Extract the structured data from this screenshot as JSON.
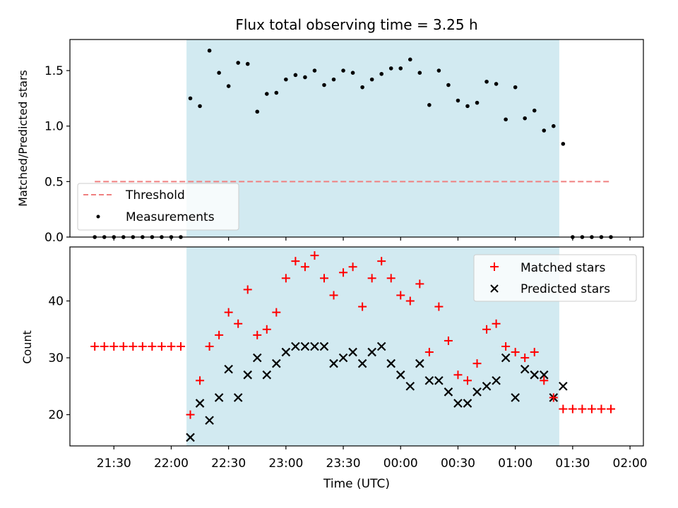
{
  "title": "Flux total observing time = 3.25 h",
  "xlabel": "Time (UTC)",
  "x_tick_labels": [
    "21:30",
    "22:00",
    "22:30",
    "23:00",
    "23:30",
    "00:00",
    "00:30",
    "01:00",
    "01:30",
    "02:00"
  ],
  "colors": {
    "shade": "#add8e6",
    "threshold": "#f08080",
    "matched": "#ff0000",
    "predicted": "#000000",
    "measurement": "#000000"
  },
  "chart_data": [
    {
      "type": "scatter",
      "ylabel": "Matched/Predicted stars",
      "xlim": [
        "21:07",
        "02:07"
      ],
      "ylim": [
        0,
        1.78
      ],
      "y_tick_labels": [
        "0.0",
        "0.5",
        "1.0",
        "1.5"
      ],
      "shaded_interval": [
        "22:08",
        "01:23"
      ],
      "threshold": {
        "label": "Threshold",
        "value": 0.5,
        "x_start": "21:20",
        "x_end": "01:50"
      },
      "legend": {
        "location": "lower-left",
        "entries": [
          "Threshold",
          "Measurements"
        ]
      },
      "series": [
        {
          "name": "Measurements",
          "points": [
            [
              "21:20",
              0
            ],
            [
              "21:25",
              0
            ],
            [
              "21:30",
              0
            ],
            [
              "21:35",
              0
            ],
            [
              "21:40",
              0
            ],
            [
              "21:45",
              0
            ],
            [
              "21:50",
              0
            ],
            [
              "21:55",
              0
            ],
            [
              "22:00",
              0
            ],
            [
              "22:05",
              0
            ],
            [
              "22:10",
              1.25
            ],
            [
              "22:15",
              1.18
            ],
            [
              "22:20",
              1.68
            ],
            [
              "22:25",
              1.48
            ],
            [
              "22:30",
              1.36
            ],
            [
              "22:35",
              1.57
            ],
            [
              "22:40",
              1.56
            ],
            [
              "22:45",
              1.13
            ],
            [
              "22:50",
              1.29
            ],
            [
              "22:55",
              1.3
            ],
            [
              "23:00",
              1.42
            ],
            [
              "23:05",
              1.46
            ],
            [
              "23:10",
              1.44
            ],
            [
              "23:15",
              1.5
            ],
            [
              "23:20",
              1.37
            ],
            [
              "23:25",
              1.42
            ],
            [
              "23:30",
              1.5
            ],
            [
              "23:35",
              1.48
            ],
            [
              "23:40",
              1.35
            ],
            [
              "23:45",
              1.42
            ],
            [
              "23:50",
              1.47
            ],
            [
              "23:55",
              1.52
            ],
            [
              "00:00",
              1.52
            ],
            [
              "00:05",
              1.6
            ],
            [
              "00:10",
              1.48
            ],
            [
              "00:15",
              1.19
            ],
            [
              "00:20",
              1.5
            ],
            [
              "00:25",
              1.37
            ],
            [
              "00:30",
              1.23
            ],
            [
              "00:35",
              1.18
            ],
            [
              "00:40",
              1.21
            ],
            [
              "00:45",
              1.4
            ],
            [
              "00:50",
              1.38
            ],
            [
              "00:55",
              1.06
            ],
            [
              "01:00",
              1.35
            ],
            [
              "01:05",
              1.07
            ],
            [
              "01:10",
              1.14
            ],
            [
              "01:15",
              0.96
            ],
            [
              "01:20",
              1.0
            ],
            [
              "01:25",
              0.84
            ],
            [
              "01:30",
              0
            ],
            [
              "01:35",
              0
            ],
            [
              "01:40",
              0
            ],
            [
              "01:45",
              0
            ],
            [
              "01:50",
              0
            ]
          ]
        }
      ]
    },
    {
      "type": "scatter",
      "ylabel": "Count",
      "xlim": [
        "21:07",
        "02:07"
      ],
      "ylim": [
        14.5,
        49.5
      ],
      "y_tick_labels": [
        "20",
        "30",
        "40"
      ],
      "shaded_interval": [
        "22:08",
        "01:23"
      ],
      "legend": {
        "location": "upper-right",
        "entries": [
          "Matched stars",
          "Predicted stars"
        ]
      },
      "series": [
        {
          "name": "Matched stars",
          "marker": "plus",
          "points": [
            [
              "21:20",
              32
            ],
            [
              "21:25",
              32
            ],
            [
              "21:30",
              32
            ],
            [
              "21:35",
              32
            ],
            [
              "21:40",
              32
            ],
            [
              "21:45",
              32
            ],
            [
              "21:50",
              32
            ],
            [
              "21:55",
              32
            ],
            [
              "22:00",
              32
            ],
            [
              "22:05",
              32
            ],
            [
              "22:10",
              20
            ],
            [
              "22:15",
              26
            ],
            [
              "22:20",
              32
            ],
            [
              "22:25",
              34
            ],
            [
              "22:30",
              38
            ],
            [
              "22:35",
              36
            ],
            [
              "22:40",
              42
            ],
            [
              "22:45",
              34
            ],
            [
              "22:50",
              35
            ],
            [
              "22:55",
              38
            ],
            [
              "23:00",
              44
            ],
            [
              "23:05",
              47
            ],
            [
              "23:10",
              46
            ],
            [
              "23:15",
              48
            ],
            [
              "23:20",
              44
            ],
            [
              "23:25",
              41
            ],
            [
              "23:30",
              45
            ],
            [
              "23:35",
              46
            ],
            [
              "23:40",
              39
            ],
            [
              "23:45",
              44
            ],
            [
              "23:50",
              47
            ],
            [
              "23:55",
              44
            ],
            [
              "00:00",
              41
            ],
            [
              "00:05",
              40
            ],
            [
              "00:10",
              43
            ],
            [
              "00:15",
              31
            ],
            [
              "00:20",
              39
            ],
            [
              "00:25",
              33
            ],
            [
              "00:30",
              27
            ],
            [
              "00:35",
              26
            ],
            [
              "00:40",
              29
            ],
            [
              "00:45",
              35
            ],
            [
              "00:50",
              36
            ],
            [
              "00:55",
              32
            ],
            [
              "01:00",
              31
            ],
            [
              "01:05",
              30
            ],
            [
              "01:10",
              31
            ],
            [
              "01:15",
              26
            ],
            [
              "01:20",
              23
            ],
            [
              "01:25",
              21
            ],
            [
              "01:30",
              21
            ],
            [
              "01:35",
              21
            ],
            [
              "01:40",
              21
            ],
            [
              "01:45",
              21
            ],
            [
              "01:50",
              21
            ]
          ]
        },
        {
          "name": "Predicted stars",
          "marker": "x",
          "points": [
            [
              "22:10",
              16
            ],
            [
              "22:15",
              22
            ],
            [
              "22:20",
              19
            ],
            [
              "22:25",
              23
            ],
            [
              "22:30",
              28
            ],
            [
              "22:35",
              23
            ],
            [
              "22:40",
              27
            ],
            [
              "22:45",
              30
            ],
            [
              "22:50",
              27
            ],
            [
              "22:55",
              29
            ],
            [
              "23:00",
              31
            ],
            [
              "23:05",
              32
            ],
            [
              "23:10",
              32
            ],
            [
              "23:15",
              32
            ],
            [
              "23:20",
              32
            ],
            [
              "23:25",
              29
            ],
            [
              "23:30",
              30
            ],
            [
              "23:35",
              31
            ],
            [
              "23:40",
              29
            ],
            [
              "23:45",
              31
            ],
            [
              "23:50",
              32
            ],
            [
              "23:55",
              29
            ],
            [
              "00:00",
              27
            ],
            [
              "00:05",
              25
            ],
            [
              "00:10",
              29
            ],
            [
              "00:15",
              26
            ],
            [
              "00:20",
              26
            ],
            [
              "00:25",
              24
            ],
            [
              "00:30",
              22
            ],
            [
              "00:35",
              22
            ],
            [
              "00:40",
              24
            ],
            [
              "00:45",
              25
            ],
            [
              "00:50",
              26
            ],
            [
              "00:55",
              30
            ],
            [
              "01:00",
              23
            ],
            [
              "01:05",
              28
            ],
            [
              "01:10",
              27
            ],
            [
              "01:15",
              27
            ],
            [
              "01:20",
              23
            ],
            [
              "01:25",
              25
            ]
          ]
        }
      ]
    }
  ]
}
